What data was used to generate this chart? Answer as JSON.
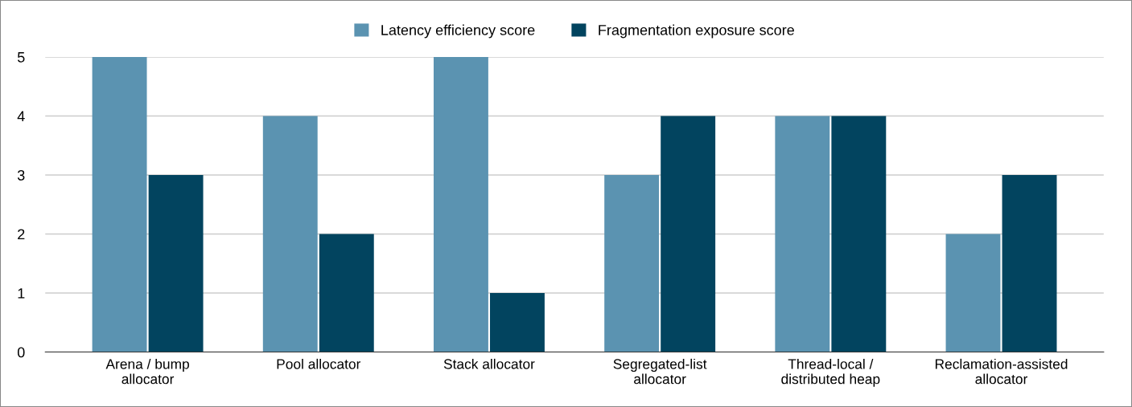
{
  "chart_data": {
    "type": "bar",
    "categories": [
      "Arena / bump\nallocator",
      "Pool allocator",
      "Stack allocator",
      "Segregated-list\nallocator",
      "Thread-local /\ndistributed heap",
      "Reclamation-assisted\nallocator"
    ],
    "series": [
      {
        "name": "Latency efficiency score",
        "color": "#5b93b1",
        "values": [
          5,
          4,
          5,
          3,
          4,
          2
        ]
      },
      {
        "name": "Fragmentation exposure score",
        "color": "#02445f",
        "values": [
          3,
          2,
          1,
          4,
          4,
          3
        ]
      }
    ],
    "ylim": [
      0,
      5
    ],
    "yticks": [
      0,
      1,
      2,
      3,
      4,
      5
    ],
    "grid": "y",
    "legend": "top"
  }
}
